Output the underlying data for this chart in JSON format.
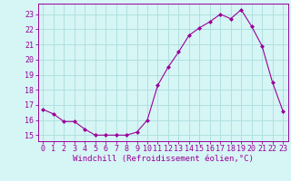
{
  "x": [
    0,
    1,
    2,
    3,
    4,
    5,
    6,
    7,
    8,
    9,
    10,
    11,
    12,
    13,
    14,
    15,
    16,
    17,
    18,
    19,
    20,
    21,
    22,
    23
  ],
  "y": [
    16.7,
    16.4,
    15.9,
    15.9,
    15.4,
    15.0,
    15.0,
    15.0,
    15.0,
    15.2,
    16.0,
    18.3,
    19.5,
    20.5,
    21.6,
    22.1,
    22.5,
    23.0,
    22.7,
    23.3,
    22.2,
    20.9,
    18.5,
    16.6
  ],
  "line_color": "#990099",
  "marker": "D",
  "marker_size": 2.0,
  "bg_color": "#d6f5f5",
  "grid_color": "#aadddd",
  "xlabel": "Windchill (Refroidissement éolien,°C)",
  "xlabel_color": "#990099",
  "xlabel_fontsize": 6.5,
  "xtick_labels": [
    "0",
    "1",
    "2",
    "3",
    "4",
    "5",
    "6",
    "7",
    "8",
    "9",
    "10",
    "11",
    "12",
    "13",
    "14",
    "15",
    "16",
    "17",
    "18",
    "19",
    "20",
    "21",
    "22",
    "23"
  ],
  "ytick_labels": [
    "15",
    "16",
    "17",
    "18",
    "19",
    "20",
    "21",
    "22",
    "23"
  ],
  "ylim": [
    14.6,
    23.7
  ],
  "xlim": [
    -0.5,
    23.5
  ],
  "tick_color": "#990099",
  "tick_fontsize": 6.0,
  "axis_color": "#990099",
  "linewidth": 0.8
}
